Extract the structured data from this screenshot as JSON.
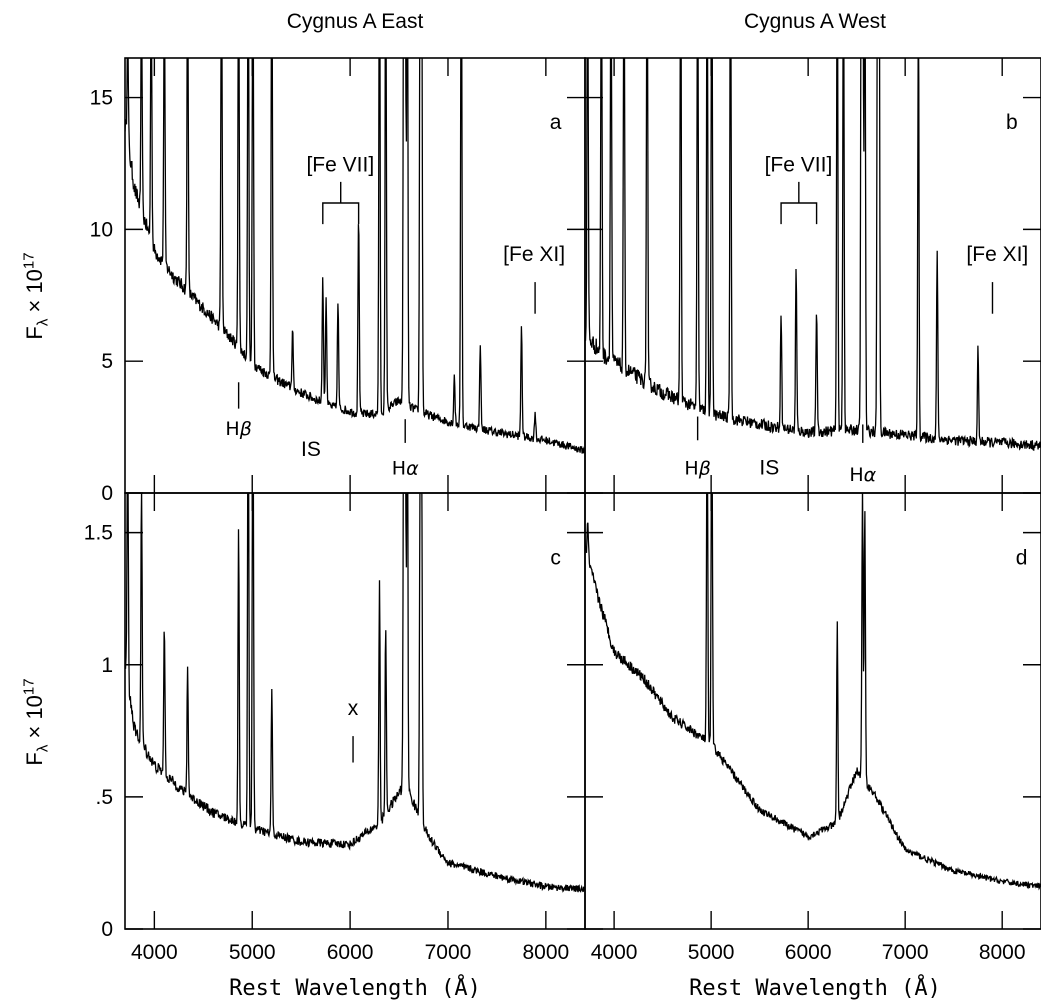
{
  "figure": {
    "titles": [
      "Cygnus A East",
      "Cygnus A West"
    ],
    "xlabel": "Rest Wavelength (Å)",
    "ylabel": {
      "base": "F",
      "sub": "λ",
      "times": "×",
      "ten": "10",
      "exp": "17"
    }
  },
  "chart_data": [
    {
      "type": "line",
      "panel": "a",
      "title": "Cygnus A East",
      "xlim": [
        3700,
        8400
      ],
      "ylim": [
        0,
        16.5
      ],
      "yticks": [
        0,
        5,
        10,
        15
      ],
      "ytick_labels": [
        "0",
        "5",
        "10",
        "15"
      ],
      "xticks": [
        4000,
        5000,
        6000,
        7000,
        8000
      ],
      "continuum": [
        [
          3700,
          14
        ],
        [
          3800,
          11.5
        ],
        [
          4000,
          9.2
        ],
        [
          4200,
          8.2
        ],
        [
          4500,
          7.0
        ],
        [
          4800,
          5.8
        ],
        [
          5000,
          4.9
        ],
        [
          5200,
          4.4
        ],
        [
          5500,
          3.8
        ],
        [
          5800,
          3.3
        ],
        [
          6100,
          3.0
        ],
        [
          6300,
          3.0
        ],
        [
          6500,
          3.5
        ],
        [
          6700,
          3.1
        ],
        [
          7000,
          2.7
        ],
        [
          7500,
          2.3
        ],
        [
          8000,
          2.0
        ],
        [
          8400,
          1.6
        ]
      ],
      "emission_lines": [
        [
          3727,
          16.5
        ],
        [
          3869,
          16.5
        ],
        [
          3968,
          16.5
        ],
        [
          4102,
          16.5
        ],
        [
          4340,
          16.5
        ],
        [
          4686,
          16.5
        ],
        [
          4861,
          16.5
        ],
        [
          4959,
          16.5
        ],
        [
          5007,
          16.5
        ],
        [
          5200,
          16.5
        ],
        [
          5412,
          5.6
        ],
        [
          5721,
          6.8
        ],
        [
          5755,
          6.3
        ],
        [
          5876,
          6.1
        ],
        [
          6087,
          8.5
        ],
        [
          6300,
          16.5
        ],
        [
          6364,
          16.5
        ],
        [
          6548,
          16.5
        ],
        [
          6563,
          16.5
        ],
        [
          6584,
          16.5
        ],
        [
          6716,
          16.5
        ],
        [
          6731,
          16.5
        ],
        [
          7065,
          4.0
        ],
        [
          7136,
          16.5
        ],
        [
          7330,
          4.8
        ],
        [
          7751,
          5.2
        ],
        [
          7890,
          2.8
        ]
      ],
      "noise": 0.12,
      "annotations": [
        {
          "text": "a",
          "x": 8100,
          "y": 13.8
        },
        {
          "text": "[Fe VII]",
          "x": 5900,
          "y": 12.2
        },
        {
          "text": "[Fe XI]",
          "x": 7880,
          "y": 8.8
        },
        {
          "text": "IS",
          "x": 5600,
          "y": 1.4
        }
      ],
      "greek_labels": [
        {
          "text": "H",
          "greek": "β",
          "x": 4861,
          "y": 2.2
        },
        {
          "text": "H",
          "greek": "α",
          "x": 6563,
          "y": 0.7
        }
      ],
      "markers": [
        {
          "x": 4861,
          "y0": 4.2,
          "y1": 3.2
        },
        {
          "x": 7890,
          "y0": 8.0,
          "y1": 6.8
        },
        {
          "x": 6563,
          "y0": 2.8,
          "y1": 1.9
        }
      ],
      "brackets": [
        {
          "x": [
            5721,
            6087
          ],
          "apex": 5904,
          "y_base": 10.2,
          "y_top": 11.0,
          "y_stem": 11.8
        }
      ]
    },
    {
      "type": "line",
      "panel": "b",
      "title": "Cygnus A West",
      "xlim": [
        3700,
        8400
      ],
      "ylim": [
        0,
        16.5
      ],
      "yticks": [
        0,
        5,
        10,
        15
      ],
      "xticks": [
        4000,
        5000,
        6000,
        7000,
        8000
      ],
      "continuum": [
        [
          3700,
          6.0
        ],
        [
          3900,
          5.2
        ],
        [
          4200,
          4.5
        ],
        [
          4500,
          3.8
        ],
        [
          5000,
          3.0
        ],
        [
          5500,
          2.6
        ],
        [
          6000,
          2.3
        ],
        [
          6500,
          2.4
        ],
        [
          7000,
          2.2
        ],
        [
          7500,
          2.0
        ],
        [
          8000,
          1.9
        ],
        [
          8400,
          1.8
        ]
      ],
      "emission_lines": [
        [
          3727,
          16.5
        ],
        [
          3869,
          16.5
        ],
        [
          3968,
          16.5
        ],
        [
          4102,
          16.5
        ],
        [
          4340,
          16.5
        ],
        [
          4686,
          16.5
        ],
        [
          4861,
          16.5
        ],
        [
          4959,
          16.5
        ],
        [
          5007,
          16.5
        ],
        [
          5200,
          16.5
        ],
        [
          5721,
          5.7
        ],
        [
          5876,
          6.8
        ],
        [
          6087,
          5.7
        ],
        [
          6300,
          16.5
        ],
        [
          6364,
          16.5
        ],
        [
          6548,
          16.5
        ],
        [
          6563,
          16.5
        ],
        [
          6584,
          16.5
        ],
        [
          6716,
          16.5
        ],
        [
          6731,
          16.5
        ],
        [
          7136,
          13.8
        ],
        [
          7330,
          7.1
        ],
        [
          7751,
          4.5
        ]
      ],
      "noise": 0.12,
      "annotations": [
        {
          "text": "b",
          "x": 8100,
          "y": 13.8
        },
        {
          "text": "[Fe VII]",
          "x": 5900,
          "y": 12.2
        },
        {
          "text": "[Fe XI]",
          "x": 7950,
          "y": 8.8
        },
        {
          "text": "IS",
          "x": 5600,
          "y": 0.7
        }
      ],
      "greek_labels": [
        {
          "text": "H",
          "greek": "β",
          "x": 4861,
          "y": 0.7
        },
        {
          "text": "H",
          "greek": "α",
          "x": 6563,
          "y": 0.45
        }
      ],
      "markers": [
        {
          "x": 4861,
          "y0": 2.9,
          "y1": 2.0
        },
        {
          "x": 7900,
          "y0": 8.0,
          "y1": 6.8
        },
        {
          "x": 6563,
          "y0": 2.6,
          "y1": 1.9
        }
      ],
      "brackets": [
        {
          "x": [
            5721,
            6087
          ],
          "apex": 5904,
          "y_base": 10.2,
          "y_top": 11.0,
          "y_stem": 11.8
        }
      ]
    },
    {
      "type": "line",
      "panel": "c",
      "xlim": [
        3700,
        8400
      ],
      "ylim": [
        0,
        1.65
      ],
      "yticks": [
        0,
        0.5,
        1,
        1.5
      ],
      "ytick_labels": [
        "0",
        ".5",
        "1",
        "1.5"
      ],
      "xticks": [
        4000,
        5000,
        6000,
        7000,
        8000
      ],
      "xtick_labels": [
        "4000",
        "5000",
        "6000",
        "7000",
        "8000"
      ],
      "continuum": [
        [
          3700,
          1.0
        ],
        [
          3800,
          0.75
        ],
        [
          4000,
          0.62
        ],
        [
          4300,
          0.52
        ],
        [
          4600,
          0.44
        ],
        [
          5000,
          0.38
        ],
        [
          5500,
          0.33
        ],
        [
          6000,
          0.32
        ],
        [
          6300,
          0.4
        ],
        [
          6560,
          0.55
        ],
        [
          6800,
          0.35
        ],
        [
          7000,
          0.25
        ],
        [
          7500,
          0.2
        ],
        [
          8000,
          0.16
        ],
        [
          8400,
          0.15
        ]
      ],
      "emission_lines": [
        [
          3727,
          1.65
        ],
        [
          3869,
          1.4
        ],
        [
          4102,
          1.0
        ],
        [
          4340,
          0.85
        ],
        [
          4861,
          1.2
        ],
        [
          4959,
          1.65
        ],
        [
          5007,
          1.65
        ],
        [
          5200,
          0.75
        ],
        [
          6300,
          1.05
        ],
        [
          6364,
          0.95
        ],
        [
          6548,
          1.65
        ],
        [
          6563,
          1.65
        ],
        [
          6584,
          1.65
        ],
        [
          6716,
          1.4
        ],
        [
          6731,
          1.38
        ]
      ],
      "noise": 0.1,
      "annotations": [
        {
          "text": "c",
          "x": 8100,
          "y": 1.38
        },
        {
          "text": "x",
          "x": 6030,
          "y": 0.81
        }
      ],
      "markers": [
        {
          "x": 6030,
          "y0": 0.73,
          "y1": 0.63
        }
      ]
    },
    {
      "type": "line",
      "panel": "d",
      "xlim": [
        3700,
        8400
      ],
      "ylim": [
        0,
        1.65
      ],
      "yticks": [
        0,
        0.5,
        1,
        1.5
      ],
      "xticks": [
        4000,
        5000,
        6000,
        7000,
        8000
      ],
      "xtick_labels": [
        "4000",
        "5000",
        "6000",
        "7000",
        "8000"
      ],
      "continuum": [
        [
          3700,
          1.45
        ],
        [
          3800,
          1.3
        ],
        [
          4000,
          1.05
        ],
        [
          4300,
          0.95
        ],
        [
          4600,
          0.8
        ],
        [
          5000,
          0.7
        ],
        [
          5500,
          0.45
        ],
        [
          6000,
          0.35
        ],
        [
          6300,
          0.4
        ],
        [
          6500,
          0.6
        ],
        [
          6700,
          0.5
        ],
        [
          7000,
          0.3
        ],
        [
          7500,
          0.22
        ],
        [
          8000,
          0.18
        ],
        [
          8400,
          0.16
        ]
      ],
      "emission_lines": [
        [
          3727,
          1.5
        ],
        [
          4959,
          1.65
        ],
        [
          5007,
          1.65
        ],
        [
          6300,
          0.95
        ],
        [
          6560,
          1.35
        ],
        [
          6584,
          1.3
        ]
      ],
      "noise": 0.09,
      "annotations": [
        {
          "text": "d",
          "x": 8200,
          "y": 1.38
        }
      ]
    }
  ]
}
